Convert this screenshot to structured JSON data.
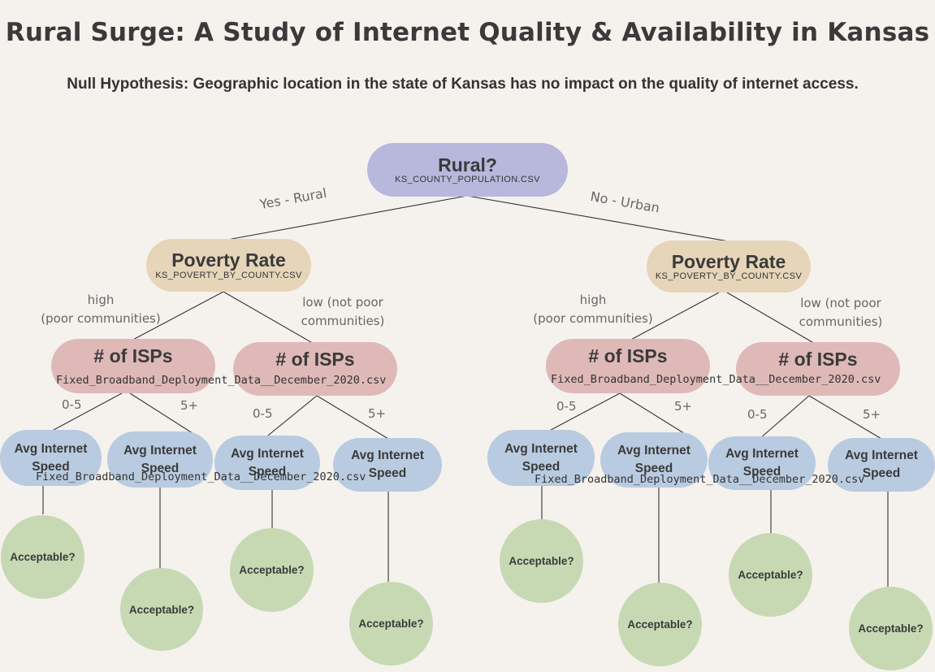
{
  "title": "Rural Surge: A Study of Internet Quality & Availability in Kansas",
  "subtitle": "Null Hypothesis: Geographic location in the state of Kansas has no impact on the quality of internet access.",
  "root": {
    "label": "Rural?",
    "source": "KS_COUNTY_POPULATION.CSV"
  },
  "branches": {
    "yes": "Yes - Rural",
    "no": "No - Urban"
  },
  "poverty": {
    "label": "Poverty Rate",
    "source": "KS_POVERTY_BY_COUNTY.CSV"
  },
  "poverty_branches": {
    "high_line1": "high",
    "high_line2": "(poor communities)",
    "low_line1": "low (not poor",
    "low_line2": "communities)"
  },
  "isp": {
    "label": "# of ISPs"
  },
  "isp_branches": {
    "low": "0-5",
    "high": "5+"
  },
  "speed": {
    "line1": "Avg Internet",
    "line2": "Speed"
  },
  "csv_file": "Fixed_Broadband_Deployment_Data__December_2020.csv",
  "acceptable": "Acceptable?",
  "colors": {
    "background": "#f5f2ee",
    "rural_node": "#b8b8dc",
    "poverty_node": "#e6d5b9",
    "isp_node": "#dfb9b8",
    "speed_node": "#b9cbe0",
    "acceptable_node": "#c7d9b3"
  }
}
